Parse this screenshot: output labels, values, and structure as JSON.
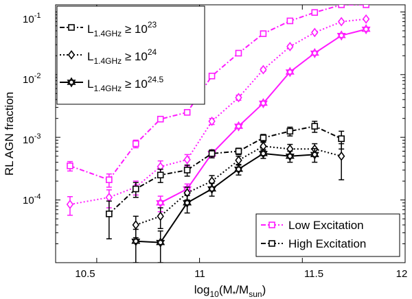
{
  "chart_data": {
    "type": "line",
    "title": "",
    "xlabel": "log10(M*/Msun)",
    "xlabel_parts": {
      "prefix": "log",
      "prefix_sub": "10",
      "open": "(M",
      "m_sub": "*",
      "slash": "/M",
      "sun_sub": "sun",
      "close": ")"
    },
    "ylabel": "RL AGN fraction",
    "xscale": "linear",
    "yscale": "log",
    "xlim": [
      10.3,
      12.0
    ],
    "ylim": [
      1e-05,
      0.13
    ],
    "x_ticks": [
      10.5,
      11,
      11.5,
      12
    ],
    "x_tick_labels": [
      "10.5",
      "11",
      "11.5",
      "12"
    ],
    "y_ticks": [
      {
        "value": 0.0001,
        "base": "10",
        "exp": "-4"
      },
      {
        "value": 0.001,
        "base": "10",
        "exp": "-3"
      },
      {
        "value": 0.01,
        "base": "10",
        "exp": "-2"
      },
      {
        "value": 0.1,
        "base": "10",
        "exp": "-1"
      }
    ],
    "luminosity_legend": {
      "position": "top-left",
      "entries": [
        {
          "marker": "square",
          "line": "dashdot",
          "label": "L",
          "sub": "1.4GHz",
          "rel": " ≥ 10",
          "exp": "23"
        },
        {
          "marker": "diamond",
          "line": "dotted",
          "label": "L",
          "sub": "1.4GHz",
          "rel": " ≥ 10",
          "exp": "24"
        },
        {
          "marker": "star",
          "line": "solid",
          "label": "L",
          "sub": "1.4GHz",
          "rel": " ≥ 10",
          "exp": "24.5"
        }
      ]
    },
    "class_legend": {
      "position": "bottom-right",
      "entries": [
        {
          "label": "Low Excitation",
          "color": "#ff1aff"
        },
        {
          "label": "High Excitation",
          "color": "#000000"
        }
      ]
    },
    "series": [
      {
        "name": "Low Excitation, L ≥ 10^23",
        "color": "#ff1aff",
        "marker": "square",
        "line": "dashdot",
        "x": [
          10.37,
          10.56,
          10.69,
          10.81,
          10.94,
          11.06,
          11.19,
          11.31,
          11.44,
          11.56,
          11.69,
          11.81
        ],
        "y": [
          0.00035,
          0.00021,
          0.00079,
          0.00195,
          0.0025,
          0.0095,
          0.022,
          0.045,
          0.072,
          0.098,
          0.13,
          0.13
        ],
        "yerr_lo": [
          0.00029,
          0.00016,
          0.00068,
          0.0018,
          0.0023,
          0.009,
          0.02,
          0.043,
          0.069,
          0.094,
          0.125,
          0.125
        ],
        "yerr_hi": [
          0.00041,
          0.00026,
          0.0009,
          0.0021,
          0.0027,
          0.01,
          0.024,
          0.047,
          0.075,
          0.102,
          0.135,
          0.135
        ]
      },
      {
        "name": "Low Excitation, L ≥ 10^24",
        "color": "#ff1aff",
        "marker": "diamond",
        "line": "dotted",
        "x": [
          10.37,
          10.56,
          10.69,
          10.81,
          10.94,
          11.06,
          11.19,
          11.31,
          11.44,
          11.56,
          11.69,
          11.81
        ],
        "y": [
          8.5e-05,
          0.00011,
          0.00016,
          0.00034,
          0.00044,
          0.0018,
          0.0043,
          0.012,
          0.028,
          0.047,
          0.07,
          0.077
        ],
        "yerr_lo": [
          5.7e-05,
          7.5e-05,
          0.00012,
          0.00026,
          0.00035,
          0.0016,
          0.0039,
          0.0113,
          0.0267,
          0.045,
          0.067,
          0.074
        ],
        "yerr_hi": [
          0.000113,
          0.000145,
          0.0002,
          0.00042,
          0.00053,
          0.002,
          0.0047,
          0.0127,
          0.0293,
          0.049,
          0.073,
          0.08
        ]
      },
      {
        "name": "Low Excitation, L ≥ 10^24.5",
        "color": "#ff1aff",
        "marker": "star",
        "line": "solid",
        "x": [
          10.81,
          10.94,
          11.06,
          11.19,
          11.31,
          11.44,
          11.56,
          11.69,
          11.81
        ],
        "y": [
          9e-05,
          0.00015,
          0.00055,
          0.0015,
          0.0035,
          0.011,
          0.022,
          0.042,
          0.053
        ],
        "yerr_lo": [
          6.5e-05,
          0.00012,
          0.00049,
          0.0014,
          0.0033,
          0.0105,
          0.021,
          0.04,
          0.051
        ],
        "yerr_hi": [
          0.000115,
          0.00018,
          0.00061,
          0.0016,
          0.0037,
          0.0115,
          0.023,
          0.044,
          0.055
        ]
      },
      {
        "name": "High Excitation, L ≥ 10^23",
        "color": "#000000",
        "marker": "square",
        "line": "dashdot",
        "x": [
          10.56,
          10.69,
          10.81,
          10.94,
          11.06,
          11.19,
          11.31,
          11.44,
          11.56,
          11.69
        ],
        "y": [
          6e-05,
          0.00015,
          0.00025,
          0.0003,
          0.00055,
          0.0006,
          0.00098,
          0.00125,
          0.0015,
          0.00095
        ],
        "yerr_lo": [
          2.4e-05,
          0.00011,
          0.00019,
          0.00024,
          0.00047,
          0.00053,
          0.00085,
          0.00105,
          0.0012,
          0.00065
        ],
        "yerr_hi": [
          9.6e-05,
          0.00019,
          0.00031,
          0.00036,
          0.00063,
          0.00067,
          0.00111,
          0.00145,
          0.0018,
          0.00125
        ]
      },
      {
        "name": "High Excitation, L ≥ 10^24",
        "color": "#000000",
        "marker": "diamond",
        "line": "dotted",
        "x": [
          10.69,
          10.81,
          10.94,
          11.06,
          11.19,
          11.31,
          11.44,
          11.56,
          11.69
        ],
        "y": [
          4e-05,
          5.5e-05,
          0.00013,
          0.0002,
          0.00043,
          0.00072,
          0.00065,
          0.00065,
          0.0005
        ],
        "yerr_lo": [
          2.5e-05,
          3.5e-05,
          0.0001,
          0.000155,
          0.00036,
          0.00061,
          0.00053,
          0.00051,
          0.00021
        ],
        "yerr_hi": [
          5.5e-05,
          7.5e-05,
          0.00016,
          0.000245,
          0.0005,
          0.00083,
          0.00077,
          0.00079,
          0.00079
        ]
      },
      {
        "name": "High Excitation, L ≥ 10^24.5",
        "color": "#000000",
        "marker": "star",
        "line": "solid",
        "x": [
          10.69,
          10.81,
          10.94,
          11.06,
          11.19,
          11.31,
          11.44,
          11.56
        ],
        "y": [
          2.2e-05,
          2.1e-05,
          9e-05,
          0.00015,
          0.00031,
          0.00055,
          0.0005,
          0.00053
        ],
        "yerr_lo": [
          1e-05,
          1e-05,
          6.2e-05,
          0.000115,
          0.00025,
          0.00046,
          0.0004,
          0.0004
        ],
        "yerr_hi": [
          3.4e-05,
          3.2e-05,
          0.000118,
          0.000185,
          0.00037,
          0.00064,
          0.0006,
          0.00066
        ]
      }
    ]
  }
}
